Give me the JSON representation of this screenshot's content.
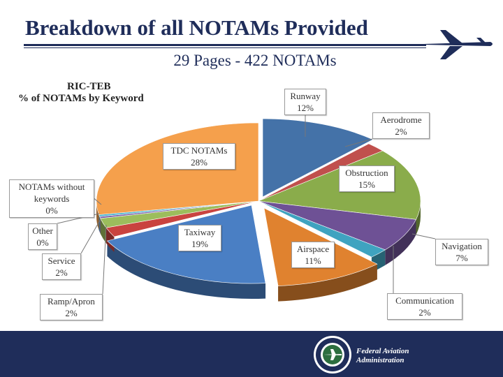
{
  "slide": {
    "title": "Breakdown of all NOTAMs Provided",
    "subtitle": "29 Pages - 422 NOTAMs",
    "footer_line1": "Federal Aviation",
    "footer_line2": "Administration"
  },
  "chart_data": {
    "type": "pie",
    "title_line1": "RIC-TEB",
    "title_line2": "% of NOTAMs by Keyword",
    "unit": "%",
    "slices": [
      {
        "label": "Runway",
        "value": 12,
        "display": "12%",
        "color": "#4472a8"
      },
      {
        "label": "Aerodrome",
        "value": 2,
        "display": "2%",
        "color": "#c0504d"
      },
      {
        "label": "Obstruction",
        "value": 15,
        "display": "15%",
        "color": "#8aac4b"
      },
      {
        "label": "Navigation",
        "value": 7,
        "display": "7%",
        "color": "#6e5195"
      },
      {
        "label": "Communication",
        "value": 2,
        "display": "2%",
        "color": "#3fa3c0"
      },
      {
        "label": "Airspace",
        "value": 11,
        "display": "11%",
        "color": "#e0822f"
      },
      {
        "label": "Taxiway",
        "value": 19,
        "display": "19%",
        "color": "#4a7fc4"
      },
      {
        "label": "Ramp/Apron",
        "value": 2,
        "display": "2%",
        "color": "#c9433f"
      },
      {
        "label": "Service",
        "value": 2,
        "display": "2%",
        "color": "#9cbd5c"
      },
      {
        "label": "Other",
        "value": 0,
        "display": "0%",
        "color": "#7a5ea8"
      },
      {
        "label": "NOTAMs without keywords",
        "value": 0,
        "display": "0%",
        "color": "#4bb4cf"
      },
      {
        "label": "TDC NOTAMs",
        "value": 28,
        "display": "28%",
        "color": "#f5a04c"
      }
    ]
  }
}
